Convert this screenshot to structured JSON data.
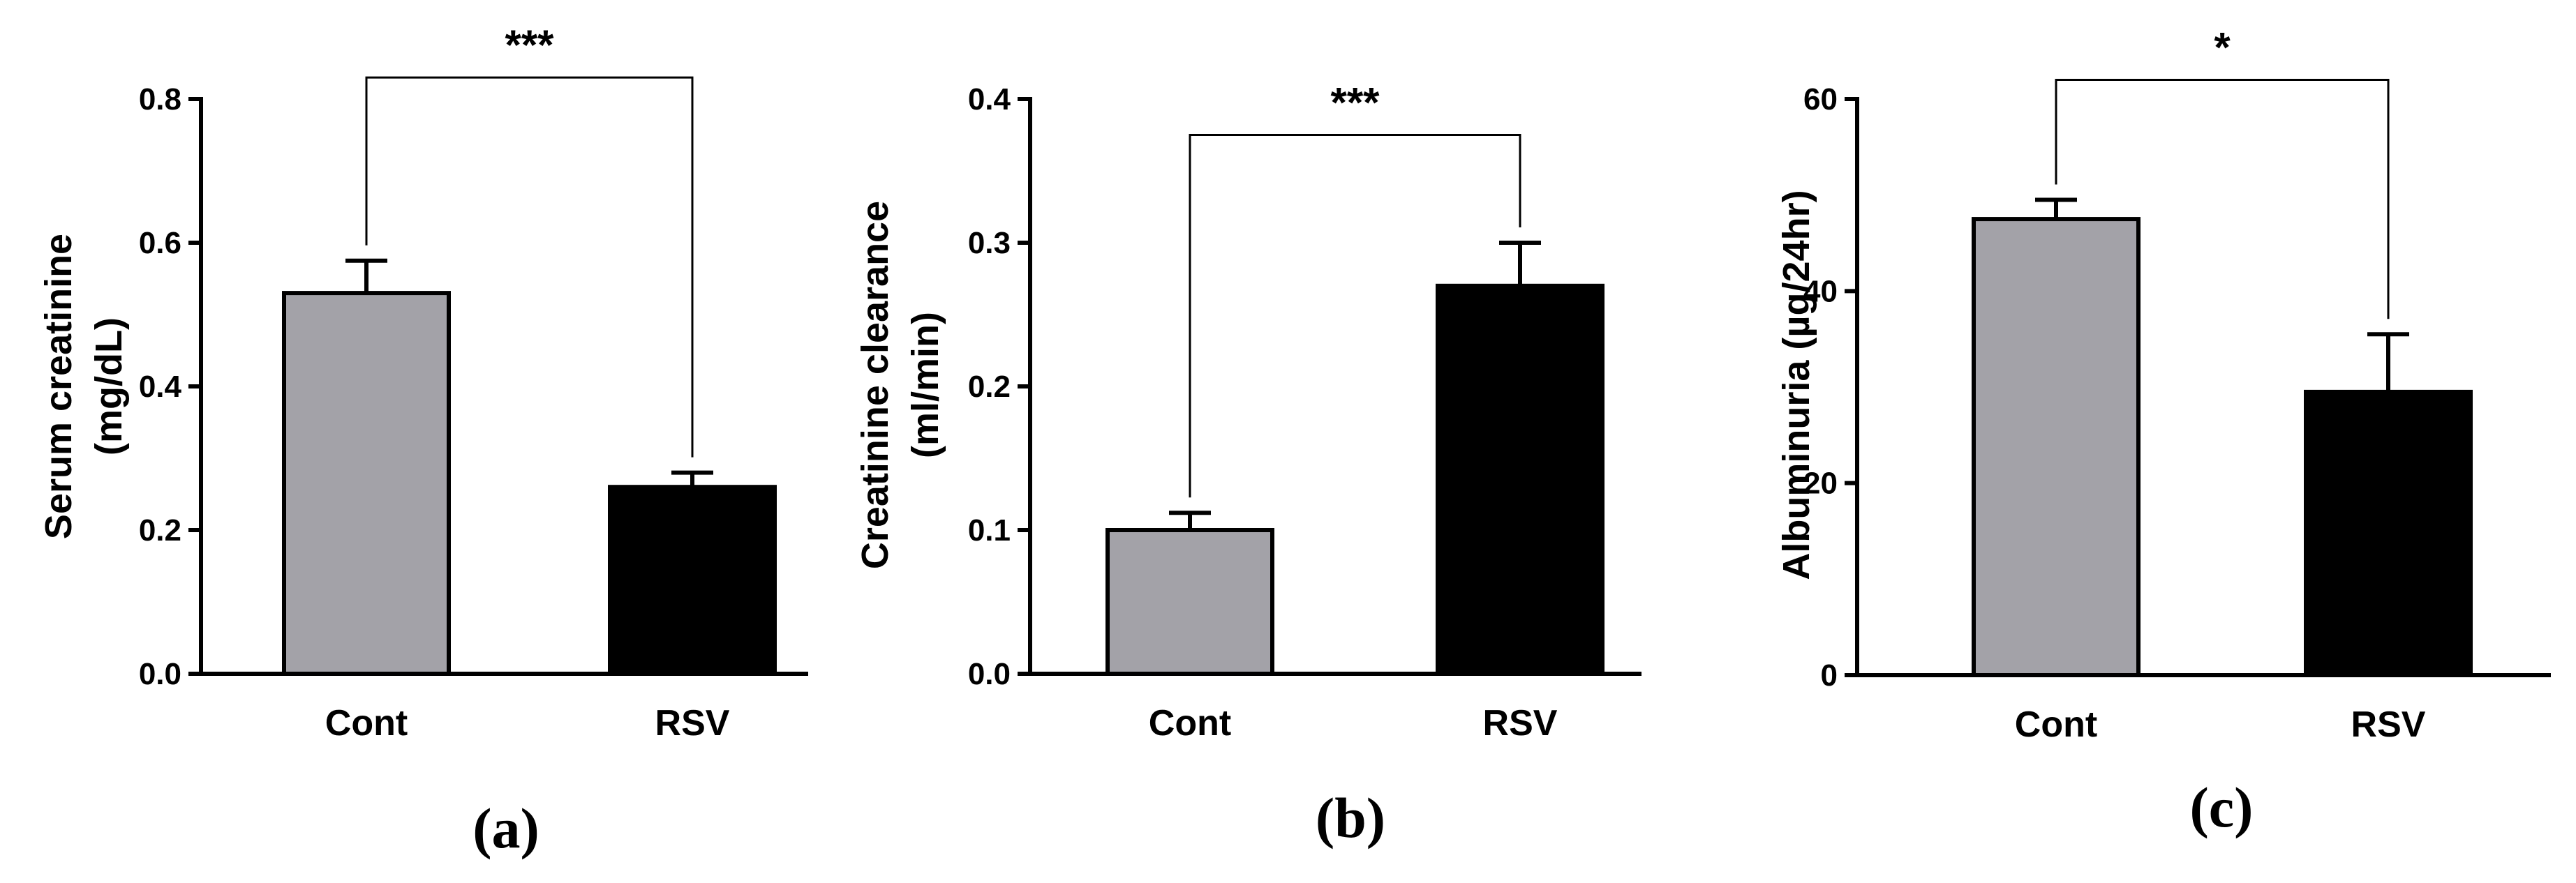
{
  "chart_data": [
    {
      "type": "bar",
      "panel_label": "(a)",
      "categories": [
        "Cont",
        "RSV"
      ],
      "values": [
        0.53,
        0.26
      ],
      "errors": [
        0.045,
        0.02
      ],
      "bar_colors": [
        "#a3a2a8",
        "#000000"
      ],
      "ylabel_lines": [
        "Serum creatinine",
        "(mg/dL)"
      ],
      "ylim": [
        0,
        0.8
      ],
      "yticks": [
        0.0,
        0.2,
        0.4,
        0.6,
        0.8
      ],
      "ytick_labels": [
        "0.0",
        "0.2",
        "0.4",
        "0.6",
        "0.8"
      ],
      "bracket_top": 0.83,
      "significance": "***"
    },
    {
      "type": "bar",
      "panel_label": "(b)",
      "categories": [
        "Cont",
        "RSV"
      ],
      "values": [
        0.1,
        0.27
      ],
      "errors": [
        0.012,
        0.03
      ],
      "bar_colors": [
        "#a3a2a8",
        "#000000"
      ],
      "ylabel_lines": [
        "Creatinine clearance",
        "(ml/min)"
      ],
      "ylim": [
        0,
        0.4
      ],
      "yticks": [
        0.0,
        0.1,
        0.2,
        0.3,
        0.4
      ],
      "ytick_labels": [
        "0.0",
        "0.1",
        "0.2",
        "0.3",
        "0.4"
      ],
      "bracket_top": 0.375,
      "significance": "***"
    },
    {
      "type": "bar",
      "panel_label": "(c)",
      "categories": [
        "Cont",
        "RSV"
      ],
      "values": [
        47.5,
        29.5
      ],
      "errors": [
        2,
        6
      ],
      "bar_colors": [
        "#a3a2a8",
        "#000000"
      ],
      "ylabel_lines": [
        "Albuminuria (µg/24hr)"
      ],
      "ylim": [
        0,
        60
      ],
      "yticks": [
        0,
        20,
        40,
        60
      ],
      "ytick_labels": [
        "0",
        "20",
        "40",
        "60"
      ],
      "bracket_top": 62,
      "significance": "*"
    }
  ]
}
